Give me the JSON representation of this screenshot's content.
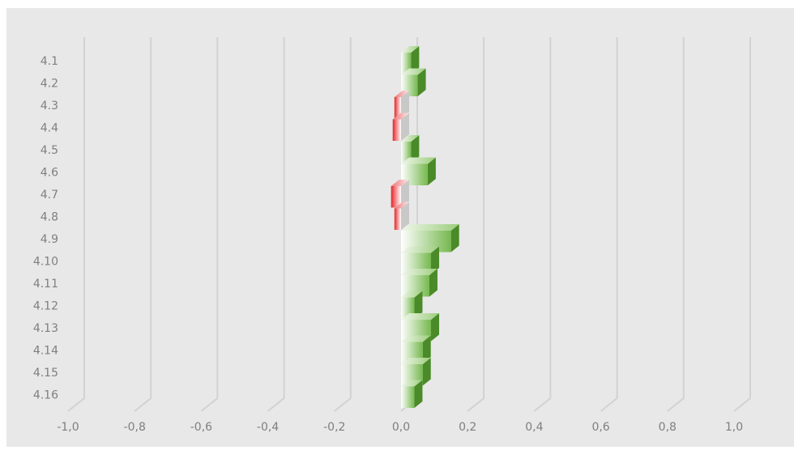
{
  "chart_data": {
    "type": "bar",
    "orientation": "horizontal",
    "categories": [
      "4.1",
      "4.2",
      "4.3",
      "4.4",
      "4.5",
      "4.6",
      "4.7",
      "4.8",
      "4.9",
      "4.10",
      "4.11",
      "4.12",
      "4.13",
      "4.14",
      "4.15",
      "4.16"
    ],
    "values": [
      0.03,
      0.05,
      -0.02,
      -0.025,
      0.03,
      0.08,
      -0.03,
      -0.02,
      0.15,
      0.09,
      0.085,
      0.04,
      0.09,
      0.065,
      0.065,
      0.04
    ],
    "title": "",
    "xlabel": "",
    "ylabel": "",
    "xlim": [
      -1.0,
      1.0
    ],
    "xticks": [
      "-1,0",
      "-0,8",
      "-0,6",
      "-0,4",
      "-0,2",
      "0,0",
      "0,2",
      "0,4",
      "0,6",
      "0,8",
      "1,0"
    ],
    "grid": "vertical",
    "legend": "none",
    "colors": {
      "positive": "#5aa032",
      "positive_light": "#ffffff",
      "negative": "#e5262a",
      "negative_light": "#ffffff",
      "background": "#e8e8e8",
      "gridline": "#d2d2d2",
      "tick_text": "#7f7f7f"
    }
  }
}
